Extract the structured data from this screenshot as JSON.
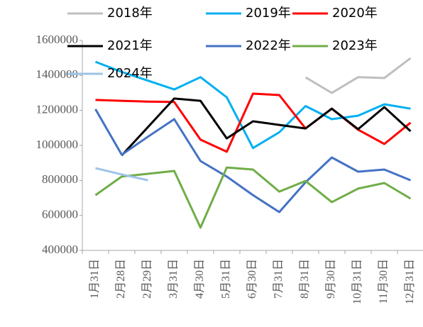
{
  "chart_data": {
    "type": "line",
    "categories": [
      "1月31日",
      "2月28日",
      "2月29日",
      "3月31日",
      "4月30日",
      "5月31日",
      "6月30日",
      "7月31日",
      "8月31日",
      "9月30日",
      "10月31日",
      "11月30日",
      "12月31日"
    ],
    "series": [
      {
        "name": "2018年",
        "color": "#bfbfbf",
        "values": [
          null,
          null,
          null,
          null,
          null,
          null,
          null,
          null,
          1389000,
          1300000,
          1390000,
          1385000,
          1499000
        ]
      },
      {
        "name": "2019年",
        "color": "#00b0f0",
        "values": [
          1478000,
          1420000,
          1370000,
          1320000,
          1390000,
          1275000,
          985000,
          1075000,
          1225000,
          1150000,
          1170000,
          1235000,
          1210000
        ]
      },
      {
        "name": "2020年",
        "color": "#ff0000",
        "values": [
          1260000,
          1255000,
          1250000,
          1248000,
          1033000,
          964000,
          1296000,
          1288000,
          1097000,
          1210000,
          1090000,
          1008000,
          1130000
        ]
      },
      {
        "name": "2021年",
        "color": "#000000",
        "values": [
          null,
          943000,
          1105000,
          1268000,
          1255000,
          1040000,
          1138000,
          1117000,
          1097000,
          1210000,
          1093000,
          1219000,
          1081000
        ]
      },
      {
        "name": "2022年",
        "color": "#4472c4",
        "values": [
          1207000,
          947000,
          1050000,
          1150000,
          911000,
          822000,
          716000,
          619000,
          789000,
          931000,
          850000,
          862000,
          801000
        ]
      },
      {
        "name": "2023年",
        "color": "#70ad47",
        "values": [
          716000,
          822000,
          838000,
          854000,
          530000,
          874000,
          862000,
          736000,
          797000,
          676000,
          753000,
          785000,
          696000
        ]
      },
      {
        "name": "2024年",
        "color": "#9dc3e6",
        "values": [
          870000,
          834000,
          801000,
          null,
          null,
          null,
          null,
          null,
          null,
          null,
          null,
          null,
          null
        ]
      }
    ],
    "ylim": [
      400000,
      1600000
    ],
    "yticks": [
      400000,
      600000,
      800000,
      1000000,
      1200000,
      1400000,
      1600000
    ],
    "grid": false
  }
}
